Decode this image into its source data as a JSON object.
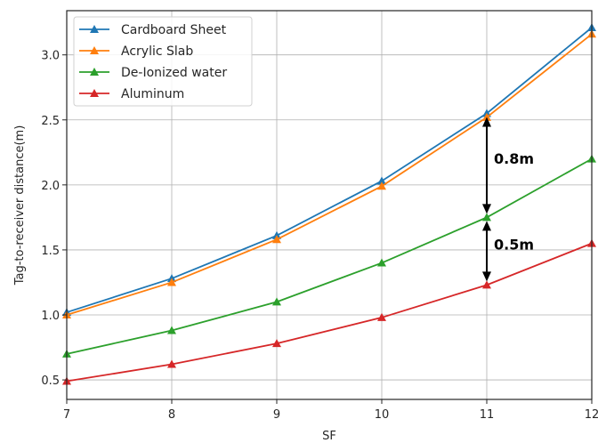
{
  "chart_data": {
    "type": "line",
    "title": "",
    "xlabel": "SF",
    "ylabel": "Tag-to-receiver distance(m)",
    "x": [
      7,
      8,
      9,
      10,
      11,
      12
    ],
    "xlim": [
      7,
      12
    ],
    "ylim": [
      0.35,
      3.34
    ],
    "xticks": [
      7,
      8,
      9,
      10,
      11,
      12
    ],
    "xtick_labels": [
      "7",
      "8",
      "9",
      "10",
      "11",
      "12"
    ],
    "yticks": [
      0.5,
      1.0,
      1.5,
      2.0,
      2.5,
      3.0
    ],
    "ytick_labels": [
      "0.5",
      "1.0",
      "1.5",
      "2.0",
      "2.5",
      "3.0"
    ],
    "grid": true,
    "legend_position": "top-left",
    "marker": "triangle",
    "series": [
      {
        "name": "Cardboard Sheet",
        "color": "#1f77b4",
        "values": [
          1.02,
          1.28,
          1.61,
          2.03,
          2.55,
          3.21
        ]
      },
      {
        "name": "Acrylic Slab",
        "color": "#ff7f0e",
        "values": [
          1.0,
          1.25,
          1.58,
          1.99,
          2.52,
          3.16
        ]
      },
      {
        "name": "De-Ionized water",
        "color": "#2ca02c",
        "values": [
          0.7,
          0.88,
          1.1,
          1.4,
          1.75,
          2.2
        ]
      },
      {
        "name": "Aluminum",
        "color": "#d62728",
        "values": [
          0.49,
          0.62,
          0.78,
          0.98,
          1.23,
          1.55
        ]
      }
    ],
    "annotations": [
      {
        "text": "0.8m",
        "x": 11,
        "y_from": 2.55,
        "y_to": 1.75
      },
      {
        "text": "0.5m",
        "x": 11,
        "y_from": 1.75,
        "y_to": 1.23
      }
    ]
  }
}
